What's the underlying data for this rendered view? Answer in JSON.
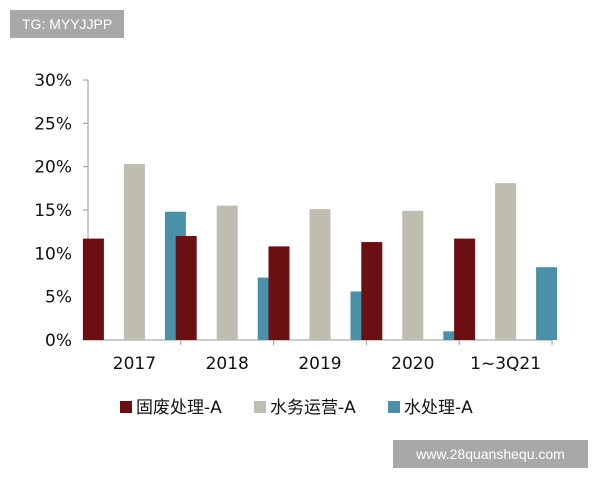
{
  "badge": {
    "text": "TG: MYYJJPP"
  },
  "watermark": {
    "text": "www.28quanshequ.com"
  },
  "chart_data": {
    "type": "bar",
    "categories": [
      "2017",
      "2018",
      "2019",
      "2020",
      "1~3Q21"
    ],
    "series": [
      {
        "name": "固废处理-A",
        "color": "#6b0f12",
        "values": [
          11.7,
          12.0,
          10.8,
          11.3,
          11.7
        ]
      },
      {
        "name": "水务运营-A",
        "color": "#bfbcb0",
        "values": [
          20.3,
          15.5,
          15.1,
          14.9,
          18.1
        ]
      },
      {
        "name": "水处理-A",
        "color": "#4a90a8",
        "values": [
          14.8,
          7.2,
          5.6,
          1.0,
          8.4
        ]
      }
    ],
    "ylim": [
      0,
      30
    ],
    "yticks": [
      "0%",
      "5%",
      "10%",
      "15%",
      "20%",
      "25%",
      "30%"
    ],
    "ytick_values": [
      0,
      5,
      10,
      15,
      20,
      25,
      30
    ],
    "legend_position": "bottom",
    "grid": false
  }
}
